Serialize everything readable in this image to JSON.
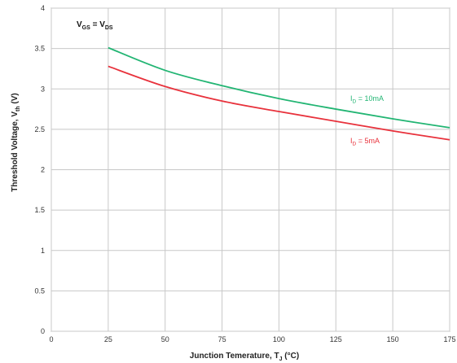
{
  "chart_data": {
    "type": "line",
    "title": "",
    "xlabel": {
      "main": "Junction Temerature, T",
      "sub": "J",
      "unit": " (°C)"
    },
    "ylabel": {
      "main": "Threshold Voltage, V",
      "sub": "th",
      "unit": " (V)"
    },
    "condition": {
      "left": "V",
      "left_sub": "GS",
      "eq": " = ",
      "right": "V",
      "right_sub": "DS"
    },
    "xlim": [
      0,
      175
    ],
    "ylim": [
      0,
      4
    ],
    "xticks": [
      "0",
      "25",
      "50",
      "75",
      "100",
      "125",
      "150",
      "175"
    ],
    "yticks": [
      "0",
      "0.5",
      "1",
      "1.5",
      "2",
      "2.5",
      "3",
      "3.5",
      "4"
    ],
    "grid": true,
    "series": [
      {
        "name": "I_D = 10mA",
        "label_main": "I",
        "label_sub": "D",
        "label_rest": " = 10mA",
        "color": "#22b573",
        "x": [
          25,
          50,
          75,
          100,
          125,
          150,
          175
        ],
        "y": [
          3.51,
          3.23,
          3.04,
          2.88,
          2.75,
          2.63,
          2.52
        ]
      },
      {
        "name": "I_D = 5mA",
        "label_main": "I",
        "label_sub": "D",
        "label_rest": " = 5mA",
        "color": "#e8323c",
        "x": [
          25,
          50,
          75,
          100,
          125,
          150,
          175
        ],
        "y": [
          3.28,
          3.03,
          2.85,
          2.72,
          2.6,
          2.48,
          2.37
        ]
      }
    ]
  }
}
